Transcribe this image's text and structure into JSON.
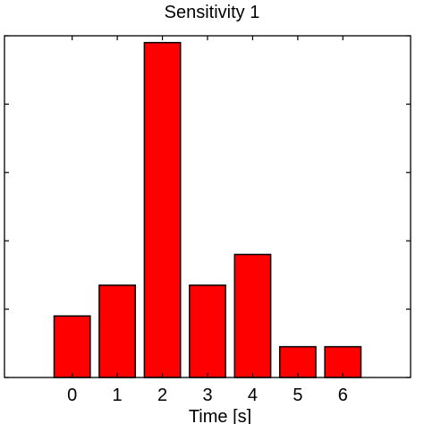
{
  "chart_data": {
    "type": "bar",
    "title": "Sensitivity 1",
    "xlabel": "Time [s]",
    "ylabel": "",
    "categories": [
      "0",
      "1",
      "2",
      "3",
      "4",
      "5",
      "6"
    ],
    "values": [
      0.18,
      0.27,
      0.98,
      0.27,
      0.36,
      0.09,
      0.09
    ],
    "xlim": [
      -1.5,
      7.5
    ],
    "ylim": [
      0,
      1.0
    ],
    "yticks": [
      0,
      0.2,
      0.4,
      0.6,
      0.8,
      1.0
    ],
    "bar_color": "#ff0000",
    "grid": false,
    "legend": "none"
  }
}
